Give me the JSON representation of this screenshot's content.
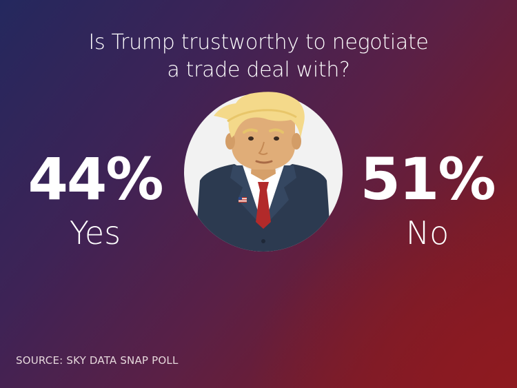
{
  "chart_data": {
    "type": "table",
    "title_lines": [
      "Is Trump trustworthy to negotiate",
      "a trade deal with?"
    ],
    "categories": [
      "Yes",
      "No"
    ],
    "values": [
      44,
      51
    ],
    "value_labels": [
      "44%",
      "51%"
    ],
    "source": "SOURCE: SKY DATA SNAP POLL"
  },
  "colors": {
    "text": "#ffffff",
    "background_start": "#24285e",
    "background_end": "#8e1a20",
    "portrait_circle": "#f2f2f2",
    "suit": "#2c3a50",
    "tie": "#b22a2a"
  },
  "icons": [
    "trump-portrait-illustration",
    "us-flag-pin-icon"
  ]
}
